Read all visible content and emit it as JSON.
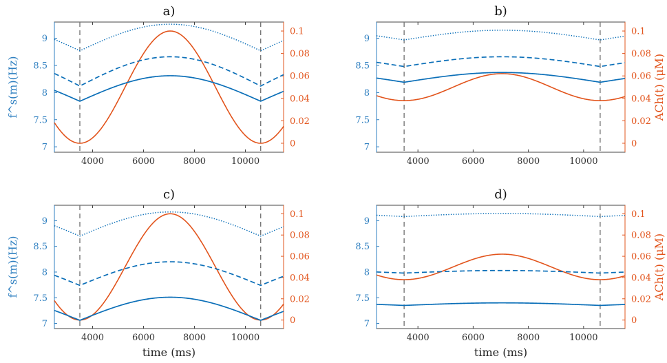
{
  "colors": {
    "fs_series": "#0b6fb8",
    "ach_series": "#e2541c",
    "left_axis": "#2e7fc0",
    "right_axis": "#e2541c",
    "vline": "#777777",
    "frame": "#444444"
  },
  "chart_data": [
    {
      "type": "line",
      "title": "a)",
      "xlabel": "",
      "ylabel_left": "f^s(m)(Hz)",
      "ylabel_right": "",
      "xlim": [
        2500,
        11500
      ],
      "ylim_left": [
        6.9,
        9.3
      ],
      "ylim_right": [
        -0.008,
        0.108
      ],
      "xticks": [
        4000,
        6000,
        8000,
        10000
      ],
      "yticks_left": [
        7,
        7.5,
        8,
        8.5,
        9
      ],
      "yticks_right": [
        0,
        0.02,
        0.04,
        0.06,
        0.08,
        0.1
      ],
      "vlines": [
        3500,
        10600
      ],
      "ach": {
        "name": "ACh(t)",
        "min": 0.0,
        "max": 0.1,
        "period": 7100,
        "peak": 7050
      },
      "fs_series": [
        {
          "name": "upper (dotted)",
          "style": "dotted",
          "min": 8.77,
          "max": 9.26
        },
        {
          "name": "middle (dashed)",
          "style": "dashed",
          "min": 8.12,
          "max": 8.66
        },
        {
          "name": "lower (solid)",
          "style": "solid",
          "min": 7.84,
          "max": 8.31
        }
      ]
    },
    {
      "type": "line",
      "title": "b)",
      "xlabel": "",
      "ylabel_left": "",
      "ylabel_right": "ACh(t) (μM)",
      "xlim": [
        2500,
        11500
      ],
      "ylim_left": [
        6.9,
        9.3
      ],
      "ylim_right": [
        -0.008,
        0.108
      ],
      "xticks": [
        4000,
        6000,
        8000,
        10000
      ],
      "yticks_left": [
        7,
        7.5,
        8,
        8.5,
        9
      ],
      "yticks_right": [
        0,
        0.02,
        0.04,
        0.06,
        0.08,
        0.1
      ],
      "vlines": [
        3500,
        10600
      ],
      "ach": {
        "name": "ACh(t)",
        "min": 0.038,
        "max": 0.062,
        "period": 7100,
        "peak": 7050
      },
      "fs_series": [
        {
          "name": "upper (dotted)",
          "style": "dotted",
          "min": 8.97,
          "max": 9.15
        },
        {
          "name": "middle (dashed)",
          "style": "dashed",
          "min": 8.48,
          "max": 8.66
        },
        {
          "name": "lower (solid)",
          "style": "solid",
          "min": 8.19,
          "max": 8.37
        }
      ]
    },
    {
      "type": "line",
      "title": "c)",
      "xlabel": "time (ms)",
      "ylabel_left": "f^s(m)(Hz)",
      "ylabel_right": "",
      "xlim": [
        2500,
        11500
      ],
      "ylim_left": [
        6.9,
        9.3
      ],
      "ylim_right": [
        -0.008,
        0.108
      ],
      "xticks": [
        4000,
        6000,
        8000,
        10000
      ],
      "yticks_left": [
        7,
        7.5,
        8,
        8.5,
        9
      ],
      "yticks_right": [
        0,
        0.02,
        0.04,
        0.06,
        0.08,
        0.1
      ],
      "vlines": [
        3500,
        10600
      ],
      "ach": {
        "name": "ACh(t)",
        "min": 0.0,
        "max": 0.1,
        "period": 7100,
        "peak": 7050
      },
      "fs_series": [
        {
          "name": "upper (dotted)",
          "style": "dotted",
          "min": 8.7,
          "max": 9.17
        },
        {
          "name": "middle (dashed)",
          "style": "dashed",
          "min": 7.74,
          "max": 8.2
        },
        {
          "name": "lower (solid)",
          "style": "solid",
          "min": 7.06,
          "max": 7.51
        }
      ]
    },
    {
      "type": "line",
      "title": "d)",
      "xlabel": "time (ms)",
      "ylabel_left": "",
      "ylabel_right": "ACh(t) (μM)",
      "xlim": [
        2500,
        11500
      ],
      "ylim_left": [
        6.9,
        9.3
      ],
      "ylim_right": [
        -0.008,
        0.108
      ],
      "xticks": [
        4000,
        6000,
        8000,
        10000
      ],
      "yticks_left": [
        7,
        7.5,
        8,
        8.5,
        9
      ],
      "yticks_right": [
        0,
        0.02,
        0.04,
        0.06,
        0.08,
        0.1
      ],
      "vlines": [
        3500,
        10600
      ],
      "ach": {
        "name": "ACh(t)",
        "min": 0.038,
        "max": 0.062,
        "period": 7100,
        "peak": 7050
      },
      "fs_series": [
        {
          "name": "upper (dotted)",
          "style": "dotted",
          "min": 9.08,
          "max": 9.14
        },
        {
          "name": "middle (dashed)",
          "style": "dashed",
          "min": 7.98,
          "max": 8.03
        },
        {
          "name": "lower (solid)",
          "style": "solid",
          "min": 7.35,
          "max": 7.4
        }
      ]
    }
  ]
}
